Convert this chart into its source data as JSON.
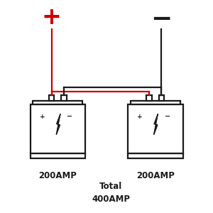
{
  "bg_color": "#ffffff",
  "line_color": "#1a1a1a",
  "red_color": "#cc0000",
  "plus_color": "#cc0000",
  "minus_color": "#1a1a1a",
  "b1x": 0.27,
  "b2x": 0.73,
  "by": 0.28,
  "bw": 0.26,
  "bh": 0.32,
  "label1": "200AMP",
  "label2": "200AMP",
  "total_label": "Total\n400AMP",
  "lw": 1.6
}
